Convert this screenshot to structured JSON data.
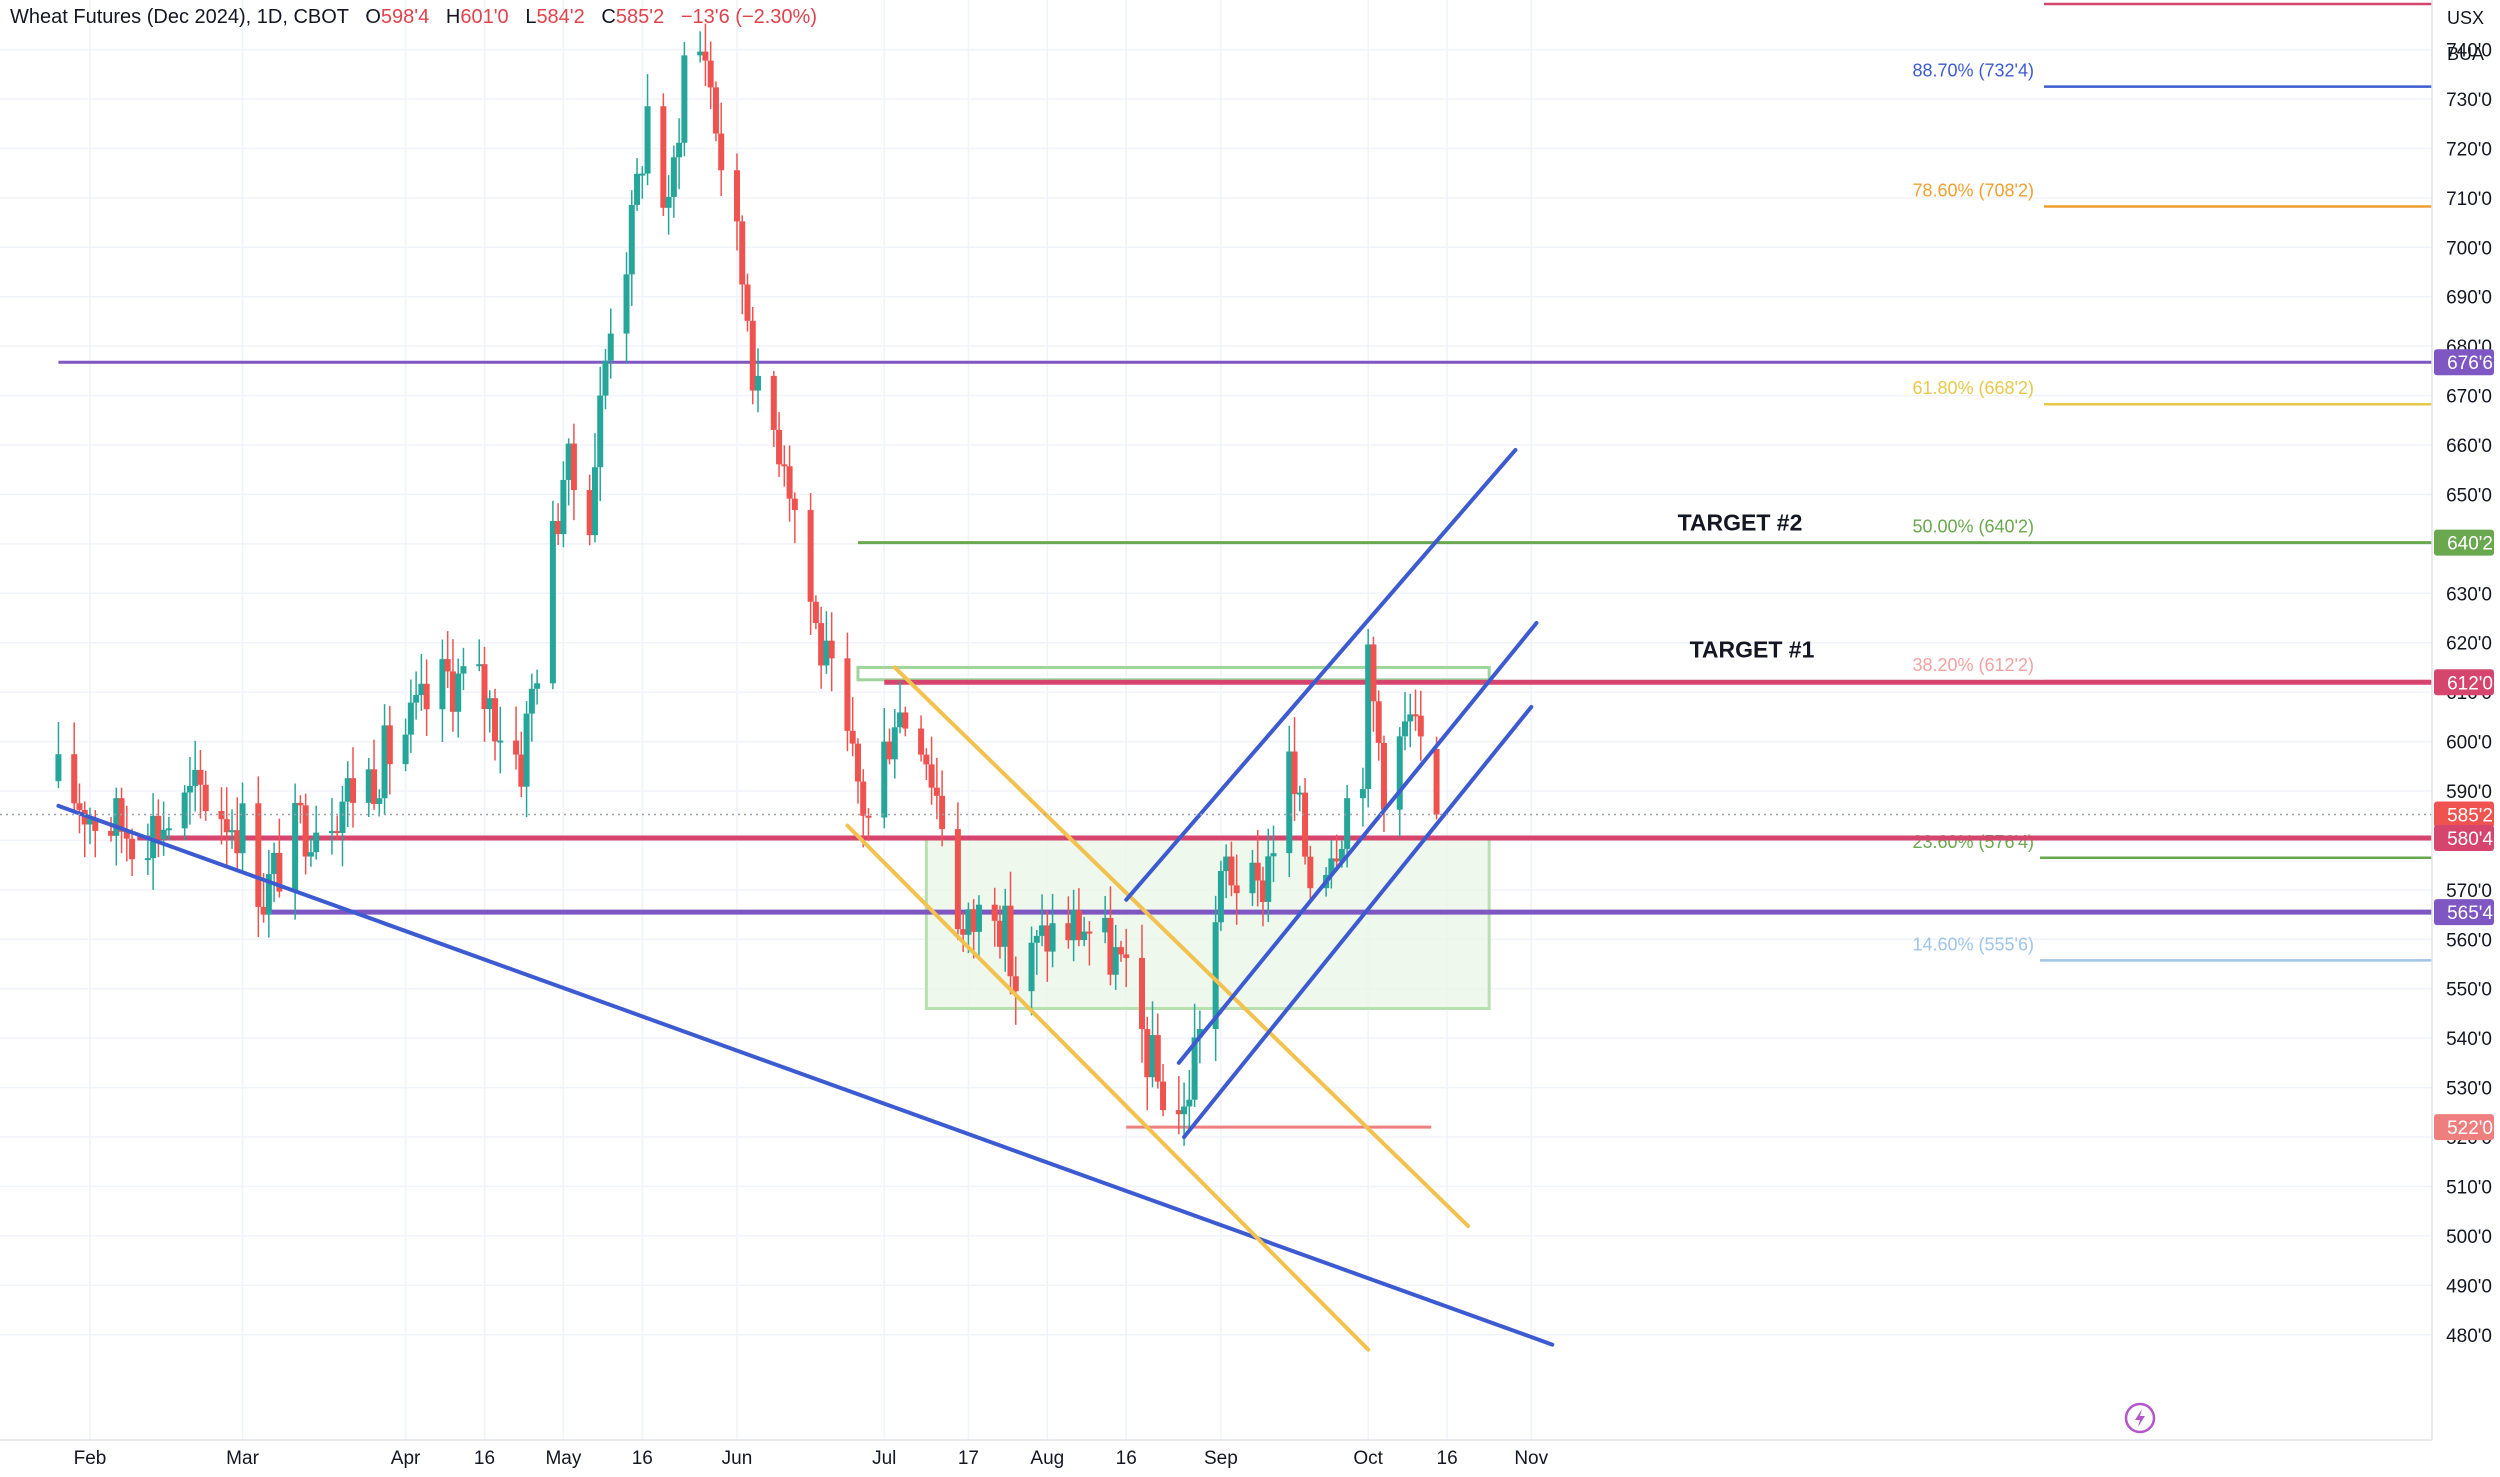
{
  "header": {
    "symbol": "Wheat Futures (Dec 2024), 1D, CBOT",
    "o_label": "O",
    "o_value": "598'4",
    "h_label": "H",
    "h_value": "601'0",
    "l_label": "L",
    "l_value": "584'2",
    "c_label": "C",
    "c_value": "585'2",
    "change": "−13'6 (−2.30%)"
  },
  "price_scale": {
    "currency": "USX",
    "unit": "BUA",
    "ticks": [
      "740'0",
      "730'0",
      "720'0",
      "710'0",
      "700'0",
      "690'0",
      "680'0",
      "670'0",
      "660'0",
      "650'0",
      "640'0",
      "630'0",
      "620'0",
      "610'0",
      "600'0",
      "590'0",
      "580'0",
      "570'0",
      "560'0",
      "550'0",
      "540'0",
      "530'0",
      "520'0",
      "510'0",
      "500'0",
      "490'0",
      "480'0"
    ],
    "tick_values": [
      740,
      730,
      720,
      710,
      700,
      690,
      680,
      670,
      660,
      650,
      640,
      630,
      620,
      610,
      600,
      590,
      580,
      570,
      560,
      550,
      540,
      530,
      520,
      510,
      500,
      490,
      480
    ]
  },
  "time_scale": {
    "labels": [
      "Feb",
      "Mar",
      "Apr",
      "16",
      "May",
      "16",
      "Jun",
      "Jul",
      "17",
      "Aug",
      "16",
      "Sep",
      "Oct",
      "16",
      "Nov"
    ],
    "dates": [
      "2024-02-01",
      "2024-03-01",
      "2024-04-01",
      "2024-04-16",
      "2024-05-01",
      "2024-05-16",
      "2024-06-03",
      "2024-07-01",
      "2024-07-17",
      "2024-08-01",
      "2024-08-16",
      "2024-09-03",
      "2024-10-01",
      "2024-10-16",
      "2024-11-01"
    ]
  },
  "price_tags": [
    {
      "label": "676'6",
      "value": 676.75,
      "color": "#7e57c2"
    },
    {
      "label": "640'2",
      "value": 640.25,
      "color": "#6aa84f"
    },
    {
      "label": "612'0",
      "value": 612.0,
      "color": "#d6456e"
    },
    {
      "label": "585'2",
      "value": 585.25,
      "color": "#ef5350"
    },
    {
      "label": "580'4",
      "value": 580.5,
      "color": "#d6456e"
    },
    {
      "label": "565'4",
      "value": 565.5,
      "color": "#7e57c2"
    },
    {
      "label": "522'0",
      "value": 522.0,
      "color": "#ef7f7f"
    }
  ],
  "fib_levels": [
    {
      "label": "88.70% (732'4)",
      "value": 732.5,
      "color": "#3d5bd1"
    },
    {
      "label": "78.60% (708'2)",
      "value": 708.25,
      "color": "#f0a030"
    },
    {
      "label": "61.80% (668'2)",
      "value": 668.25,
      "color": "#e8c84a"
    },
    {
      "label": "50.00% (640'2)",
      "value": 640.25,
      "color": "#6aa84f"
    },
    {
      "label": "38.20% (612'2)",
      "value": 612.25,
      "color": "#f2a1a1"
    },
    {
      "label": "23.60% (576'4)",
      "value": 576.5,
      "color": "#6aa84f"
    },
    {
      "label": "14.60% (555'6)",
      "value": 555.75,
      "color": "#9fc5e8"
    }
  ],
  "annotations": {
    "target1": "TARGET #1",
    "target2": "TARGET #2"
  },
  "colors": {
    "up": "#26a69a",
    "down": "#ef5350",
    "support_red": "#d6456e",
    "support_purple": "#7e57c2",
    "channel_blue": "#3d5bd1",
    "channel_yellow": "#f2c14e",
    "box_green": "#b7dfb0"
  },
  "icons": {
    "replay": "lightning-icon"
  },
  "chart_data": {
    "type": "candlestick",
    "title": "Wheat Futures (Dec 2024), 1D, CBOT",
    "ylabel": "USX / BUA",
    "ylim": [
      475,
      745
    ],
    "anchors": [
      {
        "date": "2024-01-26",
        "close": 592
      },
      {
        "date": "2024-02-02",
        "close": 585
      },
      {
        "date": "2024-02-09",
        "close": 582
      },
      {
        "date": "2024-02-16",
        "close": 584
      },
      {
        "date": "2024-02-22",
        "close": 590
      },
      {
        "date": "2024-03-01",
        "close": 583
      },
      {
        "date": "2024-03-05",
        "close": 569
      },
      {
        "date": "2024-03-12",
        "close": 583
      },
      {
        "date": "2024-03-19",
        "close": 588
      },
      {
        "date": "2024-03-26",
        "close": 594
      },
      {
        "date": "2024-04-02",
        "close": 603
      },
      {
        "date": "2024-04-09",
        "close": 613
      },
      {
        "date": "2024-04-15",
        "close": 611
      },
      {
        "date": "2024-04-23",
        "close": 596
      },
      {
        "date": "2024-04-26",
        "close": 617
      },
      {
        "date": "2024-05-01",
        "close": 655
      },
      {
        "date": "2024-05-06",
        "close": 648
      },
      {
        "date": "2024-05-10",
        "close": 687
      },
      {
        "date": "2024-05-14",
        "close": 703
      },
      {
        "date": "2024-05-17",
        "close": 728
      },
      {
        "date": "2024-05-21",
        "close": 705
      },
      {
        "date": "2024-05-24",
        "close": 738
      },
      {
        "date": "2024-05-28",
        "close": 740
      },
      {
        "date": "2024-05-31",
        "close": 718
      },
      {
        "date": "2024-06-05",
        "close": 688
      },
      {
        "date": "2024-06-07",
        "close": 668
      },
      {
        "date": "2024-06-12",
        "close": 660
      },
      {
        "date": "2024-06-18",
        "close": 623
      },
      {
        "date": "2024-06-24",
        "close": 598
      },
      {
        "date": "2024-06-28",
        "close": 584
      },
      {
        "date": "2024-07-03",
        "close": 607
      },
      {
        "date": "2024-07-08",
        "close": 603
      },
      {
        "date": "2024-07-12",
        "close": 585
      },
      {
        "date": "2024-07-16",
        "close": 560
      },
      {
        "date": "2024-07-22",
        "close": 570
      },
      {
        "date": "2024-07-26",
        "close": 551
      },
      {
        "date": "2024-08-01",
        "close": 561
      },
      {
        "date": "2024-08-08",
        "close": 563
      },
      {
        "date": "2024-08-14",
        "close": 556
      },
      {
        "date": "2024-08-22",
        "close": 531
      },
      {
        "date": "2024-08-27",
        "close": 524
      },
      {
        "date": "2024-08-30",
        "close": 545
      },
      {
        "date": "2024-09-04",
        "close": 575
      },
      {
        "date": "2024-09-10",
        "close": 568
      },
      {
        "date": "2024-09-16",
        "close": 594
      },
      {
        "date": "2024-09-20",
        "close": 573
      },
      {
        "date": "2024-09-25",
        "close": 582
      },
      {
        "date": "2024-09-30",
        "close": 597
      },
      {
        "date": "2024-10-01",
        "close": 614
      },
      {
        "date": "2024-10-04",
        "close": 593
      },
      {
        "date": "2024-10-09",
        "close": 604
      },
      {
        "date": "2024-10-14",
        "close": 585.25
      }
    ],
    "last_candle": {
      "date": "2024-10-14",
      "open": 598.5,
      "high": 601.0,
      "low": 584.25,
      "close": 585.25
    },
    "horizontal_lines": [
      {
        "value": 676.75,
        "color": "#7e57c2",
        "from": "2024-01-26"
      },
      {
        "value": 580.5,
        "color": "#d6456e",
        "from": "2024-02-10"
      },
      {
        "value": 565.5,
        "color": "#7e57c2",
        "from": "2024-03-05"
      },
      {
        "value": 612.0,
        "color": "#d6456e",
        "from": "2024-07-01"
      },
      {
        "value": 640.25,
        "color": "#6aa84f",
        "from": "2024-06-26"
      },
      {
        "value": 522.0,
        "color": "#ef7f7f",
        "from": "2024-08-16",
        "to": "2024-11-01"
      }
    ],
    "trendlines": [
      {
        "color": "#3d5bd1",
        "from": {
          "date": "2024-01-26",
          "value": 587
        },
        "to": {
          "date": "2024-11-05",
          "value": 478
        }
      },
      {
        "color": "#f2c14e",
        "from": {
          "date": "2024-07-03",
          "value": 615
        },
        "to": {
          "date": "2024-10-20",
          "value": 502
        }
      },
      {
        "color": "#f2c14e",
        "from": {
          "date": "2024-06-24",
          "value": 583
        },
        "to": {
          "date": "2024-10-01",
          "value": 477
        }
      },
      {
        "color": "#3d5bd1",
        "from": {
          "date": "2024-08-16",
          "value": 568
        },
        "to": {
          "date": "2024-10-29",
          "value": 659
        }
      },
      {
        "color": "#3d5bd1",
        "from": {
          "date": "2024-08-26",
          "value": 535
        },
        "to": {
          "date": "2024-11-02",
          "value": 624
        }
      },
      {
        "color": "#3d5bd1",
        "from": {
          "date": "2024-08-27",
          "value": 520
        },
        "to": {
          "date": "2024-11-01",
          "value": 607
        }
      }
    ],
    "boxes": [
      {
        "from": "2024-07-09",
        "to": "2024-10-24",
        "top": 580.5,
        "bottom": 546,
        "fill": "#eaf6e8",
        "stroke": "#b7dfb0"
      },
      {
        "from": "2024-06-26",
        "to": "2024-10-24",
        "top": 615,
        "bottom": 612.5,
        "fill": "none",
        "stroke": "#9fd49a"
      }
    ]
  }
}
